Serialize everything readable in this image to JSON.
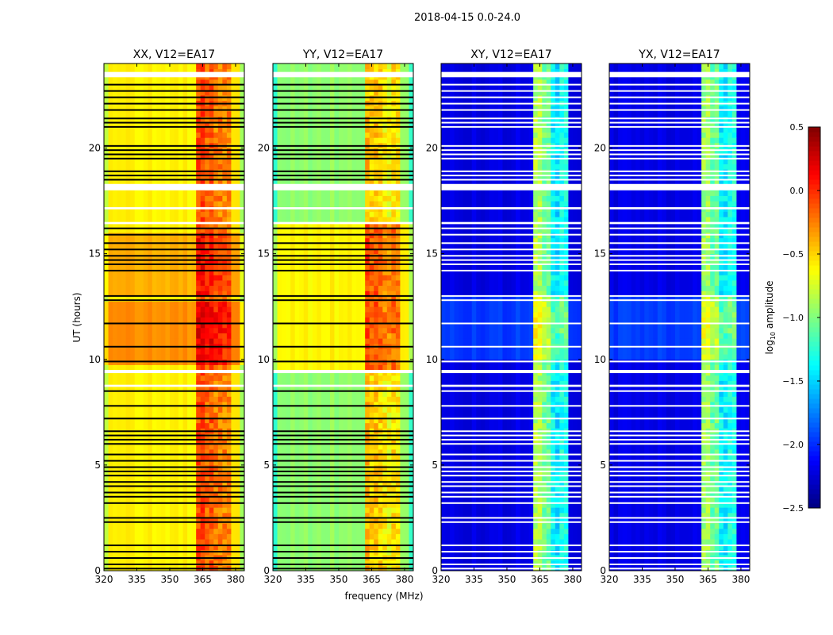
{
  "chart_data": {
    "type": "heatmap",
    "suptitle": "2018-04-15 0.0-24.0",
    "xlabel": "frequency (MHz)",
    "ylabel": "UT (hours)",
    "xlim": [
      320,
      384
    ],
    "ylim": [
      0,
      24
    ],
    "xticks": [
      320,
      335,
      350,
      365,
      380
    ],
    "yticks": [
      0,
      5,
      10,
      15,
      20
    ],
    "colorbar": {
      "label": "log10 amplitude",
      "label_main": "log",
      "label_sub": "10",
      "label_rest": " amplitude",
      "range": [
        -2.5,
        0.5
      ],
      "ticks": [
        "0.5",
        "0.0",
        "−0.5",
        "−1.0",
        "−1.5",
        "−2.0",
        "−2.5"
      ],
      "tick_values": [
        0.5,
        0.0,
        -0.5,
        -1.0,
        -1.5,
        -2.0,
        -2.5
      ],
      "colormap": "jet"
    },
    "panels": [
      {
        "title": "XX, V12=EA17",
        "kind": "parallel",
        "base": -0.6,
        "high_periods": [
          [
            9.7,
            12.6,
            0.3
          ],
          [
            12.9,
            15.8,
            0.2
          ]
        ],
        "flag_color": "#000000"
      },
      {
        "title": "YY, V12=EA17",
        "kind": "parallel",
        "base": -0.95,
        "high_periods": [
          [
            9.5,
            16.5,
            0.35
          ]
        ],
        "flag_color": "#000000"
      },
      {
        "title": "XY, V12=EA17",
        "kind": "cross",
        "base": -2.2,
        "high_periods": [
          [
            10.0,
            13.0,
            0.25
          ]
        ],
        "flag_color": "#ffffff"
      },
      {
        "title": "YX, V12=EA17",
        "kind": "cross",
        "base": -2.2,
        "high_periods": [
          [
            10.0,
            13.0,
            0.25
          ]
        ],
        "flag_color": "#ffffff"
      }
    ],
    "rfi_bands_mhz": [
      [
        363,
        366,
        1.0
      ],
      [
        367,
        370,
        0.85
      ],
      [
        371,
        373,
        0.6
      ],
      [
        375,
        378,
        0.7
      ]
    ],
    "gaps_hours": [
      [
        23.35,
        23.6
      ],
      [
        18.0,
        18.3
      ],
      [
        17.1,
        17.2
      ],
      [
        16.4,
        16.5
      ],
      [
        9.35,
        9.5
      ],
      [
        8.7,
        8.8
      ]
    ],
    "flag_lines_hours": [
      23.0,
      22.7,
      22.4,
      22.1,
      21.8,
      21.4,
      21.2,
      21.0,
      20.1,
      19.9,
      19.7,
      19.5,
      18.9,
      18.7,
      18.5,
      16.2,
      15.9,
      15.5,
      15.2,
      14.9,
      14.7,
      14.5,
      14.2,
      13.0,
      12.8,
      11.7,
      10.6,
      9.9,
      8.5,
      7.8,
      7.2,
      6.6,
      6.4,
      6.2,
      6.0,
      5.5,
      5.2,
      4.9,
      4.7,
      4.5,
      4.2,
      4.0,
      3.7,
      3.5,
      3.2,
      2.5,
      2.3,
      1.2,
      0.9,
      0.6,
      0.3,
      0.1
    ]
  }
}
